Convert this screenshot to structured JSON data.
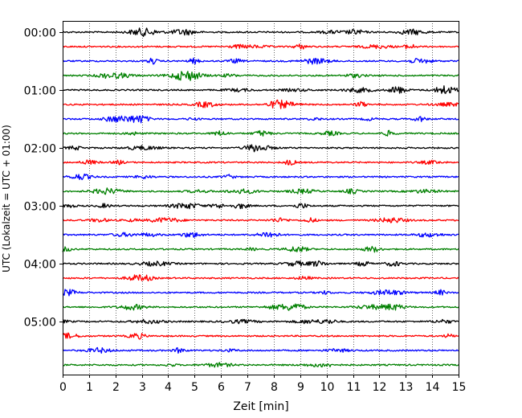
{
  "chart_data": {
    "type": "line",
    "title": "",
    "xlabel": "Zeit  [min]",
    "ylabel": "UTC (Lokalzeit = UTC + 01:00)",
    "xlim": [
      0,
      15
    ],
    "xticks": [
      "0",
      "1",
      "2",
      "3",
      "4",
      "5",
      "6",
      "7",
      "8",
      "9",
      "10",
      "11",
      "12",
      "13",
      "14",
      "15"
    ],
    "yticks": [
      "00:00",
      "01:00",
      "02:00",
      "03:00",
      "04:00",
      "05:00"
    ],
    "grid": "vertical dotted lines at each minute",
    "trace_minutes": 15,
    "trace_count": 24,
    "color_cycle": [
      "#000000",
      "#ff0000",
      "#0000ff",
      "#008000"
    ],
    "traces": [
      {
        "start": "00:00",
        "color": "#000000"
      },
      {
        "start": "00:15",
        "color": "#ff0000"
      },
      {
        "start": "00:30",
        "color": "#0000ff"
      },
      {
        "start": "00:45",
        "color": "#008000"
      },
      {
        "start": "01:00",
        "color": "#000000"
      },
      {
        "start": "01:15",
        "color": "#ff0000"
      },
      {
        "start": "01:30",
        "color": "#0000ff"
      },
      {
        "start": "01:45",
        "color": "#008000"
      },
      {
        "start": "02:00",
        "color": "#000000"
      },
      {
        "start": "02:15",
        "color": "#ff0000"
      },
      {
        "start": "02:30",
        "color": "#0000ff"
      },
      {
        "start": "02:45",
        "color": "#008000"
      },
      {
        "start": "03:00",
        "color": "#000000"
      },
      {
        "start": "03:15",
        "color": "#ff0000"
      },
      {
        "start": "03:30",
        "color": "#0000ff"
      },
      {
        "start": "03:45",
        "color": "#008000"
      },
      {
        "start": "04:00",
        "color": "#000000"
      },
      {
        "start": "04:15",
        "color": "#ff0000"
      },
      {
        "start": "04:30",
        "color": "#0000ff"
      },
      {
        "start": "04:45",
        "color": "#008000"
      },
      {
        "start": "05:00",
        "color": "#000000"
      },
      {
        "start": "05:15",
        "color": "#ff0000"
      },
      {
        "start": "05:30",
        "color": "#0000ff"
      },
      {
        "start": "05:45",
        "color": "#008000"
      }
    ]
  }
}
